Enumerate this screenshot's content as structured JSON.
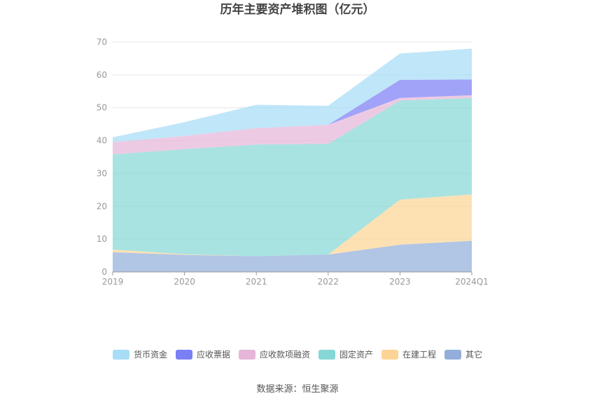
{
  "chart_data": {
    "type": "area",
    "stacked": true,
    "title": "历年主要资产堆积图（亿元）",
    "categories": [
      "2019",
      "2020",
      "2021",
      "2022",
      "2023",
      "2024Q1"
    ],
    "ylim": [
      0,
      70
    ],
    "yticks": [
      0,
      10,
      20,
      30,
      40,
      50,
      60,
      70
    ],
    "grid": true,
    "legend_position": "bottom",
    "series": [
      {
        "name": "其它",
        "color": "#93aedb",
        "values": [
          6.0,
          5.2,
          4.8,
          5.3,
          8.3,
          9.5
        ]
      },
      {
        "name": "在建工程",
        "color": "#fcd596",
        "values": [
          0.8,
          0.2,
          0.0,
          0.0,
          13.7,
          14.1
        ]
      },
      {
        "name": "固定资产",
        "color": "#86d8d6",
        "values": [
          29.0,
          32.0,
          34.0,
          33.7,
          30.2,
          29.4
        ]
      },
      {
        "name": "应收款项融资",
        "color": "#e6b6d8",
        "values": [
          3.7,
          4.0,
          5.0,
          5.8,
          0.8,
          0.8
        ]
      },
      {
        "name": "应收票据",
        "color": "#7b7ff5",
        "values": [
          0.0,
          0.0,
          0.0,
          0.0,
          5.5,
          4.8
        ]
      },
      {
        "name": "货币资金",
        "color": "#a8ddf7",
        "values": [
          1.5,
          4.2,
          7.1,
          5.8,
          8.0,
          9.4
        ]
      }
    ],
    "legend_order": [
      "货币资金",
      "应收票据",
      "应收款项融资",
      "固定资产",
      "在建工程",
      "其它"
    ]
  },
  "footer": {
    "source": "数据来源：恒生聚源"
  }
}
